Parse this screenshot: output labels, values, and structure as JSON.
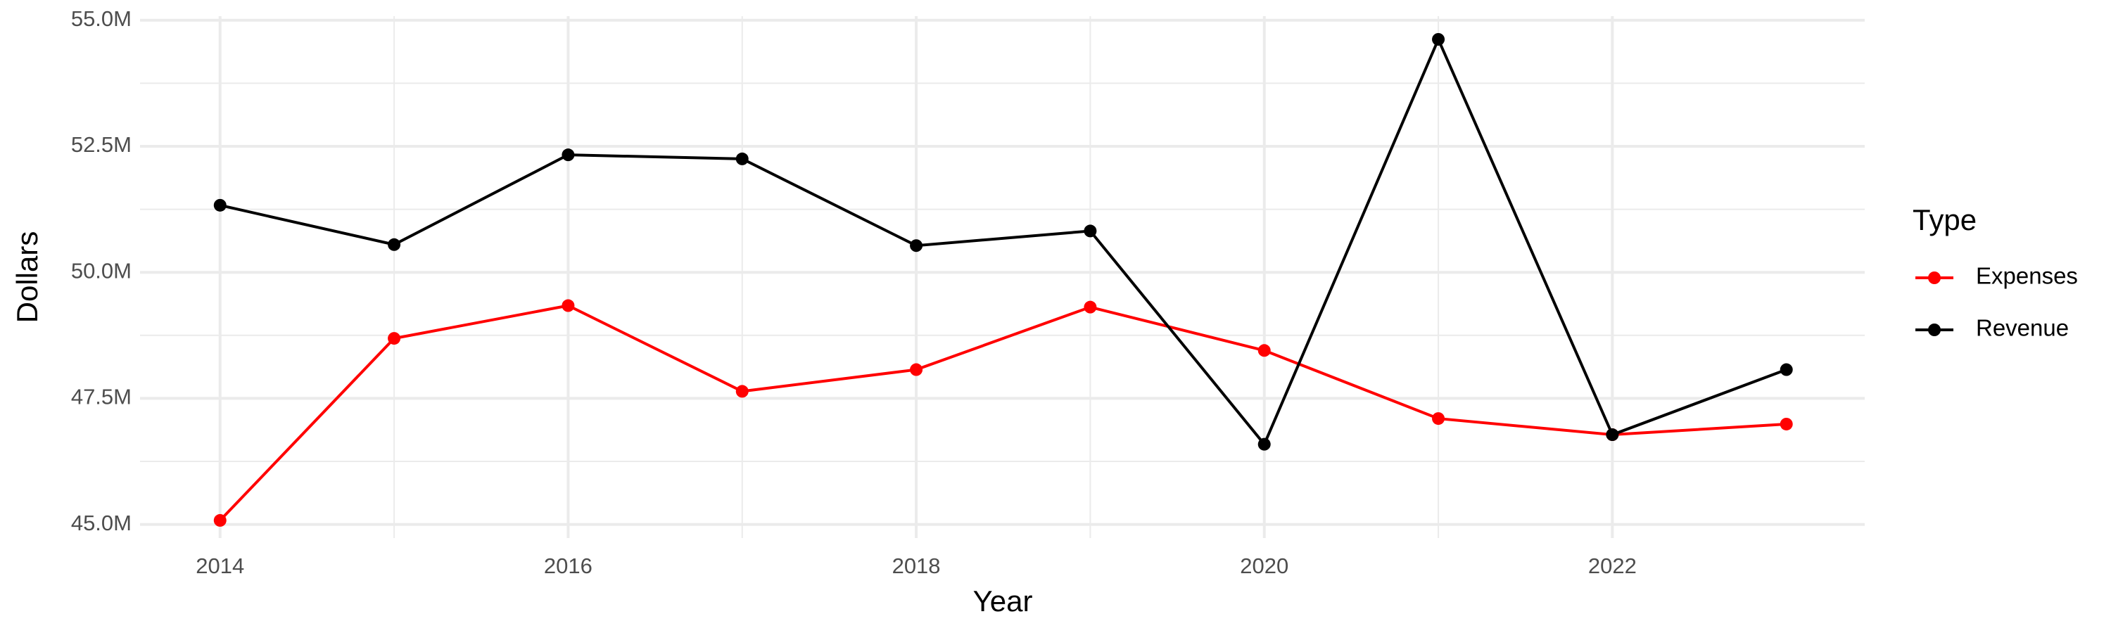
{
  "chart_data": {
    "type": "line",
    "x_label": "Year",
    "y_label": "Dollars",
    "legend_title": "Type",
    "x": [
      2014,
      2015,
      2016,
      2017,
      2018,
      2019,
      2020,
      2021,
      2022,
      2023
    ],
    "series": [
      {
        "name": "Expenses",
        "color": "#ff0000",
        "values": [
          45080000,
          48690000,
          49340000,
          47640000,
          48070000,
          49310000,
          48450000,
          47100000,
          46780000,
          46990000
        ]
      },
      {
        "name": "Revenue",
        "color": "#000000",
        "values": [
          51330000,
          50550000,
          52330000,
          52250000,
          50530000,
          50820000,
          46590000,
          54620000,
          46780000,
          48070000
        ]
      }
    ],
    "xlim": [
      2013.54,
      2023.45
    ],
    "xticks": [
      2014,
      2016,
      2018,
      2020,
      2022
    ],
    "ylim": [
      44730000,
      55080000
    ],
    "yticks": [
      {
        "value": 45000000,
        "label": "45.0M"
      },
      {
        "value": 47500000,
        "label": "47.5M"
      },
      {
        "value": 50000000,
        "label": "50.0M"
      },
      {
        "value": 52500000,
        "label": "52.5M"
      },
      {
        "value": 55000000,
        "label": "55.0M"
      }
    ],
    "grid": true,
    "legend": "right"
  }
}
